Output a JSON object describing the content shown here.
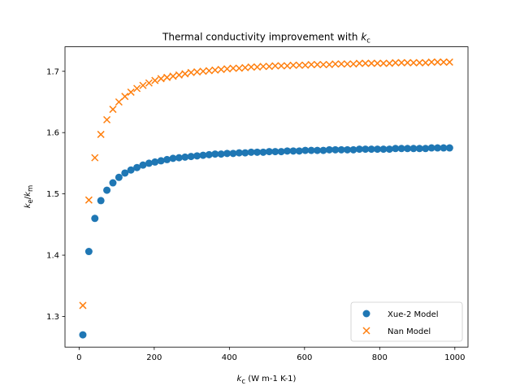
{
  "chart_data": {
    "type": "scatter",
    "title": {
      "main": "Thermal conductivity improvement with ",
      "var": "k",
      "sub": "c"
    },
    "xlabel": {
      "var": "k",
      "sub": "c",
      "rest": " (W m-1 K-1)"
    },
    "ylabel": {
      "var1": "k",
      "sub1": "e",
      "slash": "/",
      "var2": "k",
      "sub2": "m"
    },
    "xlim": [
      -37.5,
      1035
    ],
    "ylim": [
      1.25,
      1.74
    ],
    "xticks": [
      0,
      200,
      400,
      600,
      800,
      1000
    ],
    "yticks": [
      1.3,
      1.4,
      1.5,
      1.6,
      1.7
    ],
    "grid": false,
    "legend_position": "lower-right",
    "x": [
      10,
      26,
      42,
      58,
      74,
      90,
      106,
      122,
      138,
      154,
      170,
      186,
      202,
      218,
      234,
      250,
      266,
      282,
      298,
      314,
      330,
      346,
      362,
      378,
      394,
      410,
      426,
      442,
      458,
      474,
      490,
      506,
      522,
      538,
      554,
      570,
      586,
      602,
      618,
      634,
      650,
      666,
      682,
      698,
      714,
      730,
      746,
      762,
      778,
      794,
      810,
      826,
      842,
      858,
      874,
      890,
      906,
      922,
      938,
      954,
      970,
      986
    ],
    "series": [
      {
        "name": "Xue-2 Model",
        "marker": "circle",
        "color": "#1f77b4",
        "values": [
          1.27,
          1.406,
          1.46,
          1.489,
          1.506,
          1.518,
          1.527,
          1.534,
          1.539,
          1.543,
          1.547,
          1.55,
          1.552,
          1.554,
          1.556,
          1.558,
          1.559,
          1.56,
          1.561,
          1.562,
          1.563,
          1.564,
          1.565,
          1.565,
          1.566,
          1.566,
          1.567,
          1.567,
          1.568,
          1.568,
          1.568,
          1.569,
          1.569,
          1.569,
          1.57,
          1.57,
          1.57,
          1.571,
          1.571,
          1.571,
          1.571,
          1.572,
          1.572,
          1.572,
          1.572,
          1.572,
          1.573,
          1.573,
          1.573,
          1.573,
          1.573,
          1.573,
          1.574,
          1.574,
          1.574,
          1.574,
          1.574,
          1.574,
          1.575,
          1.575,
          1.575,
          1.575
        ]
      },
      {
        "name": "Nan Model",
        "marker": "x",
        "color": "#ff7f0e",
        "values": [
          1.318,
          1.49,
          1.559,
          1.597,
          1.621,
          1.638,
          1.65,
          1.659,
          1.666,
          1.672,
          1.677,
          1.681,
          1.685,
          1.688,
          1.69,
          1.692,
          1.694,
          1.696,
          1.698,
          1.699,
          1.7,
          1.701,
          1.702,
          1.703,
          1.704,
          1.705,
          1.705,
          1.706,
          1.707,
          1.707,
          1.708,
          1.708,
          1.709,
          1.709,
          1.709,
          1.71,
          1.71,
          1.71,
          1.711,
          1.711,
          1.711,
          1.711,
          1.712,
          1.712,
          1.712,
          1.712,
          1.713,
          1.713,
          1.713,
          1.713,
          1.713,
          1.713,
          1.714,
          1.714,
          1.714,
          1.714,
          1.714,
          1.714,
          1.715,
          1.715,
          1.715,
          1.715
        ]
      }
    ]
  }
}
